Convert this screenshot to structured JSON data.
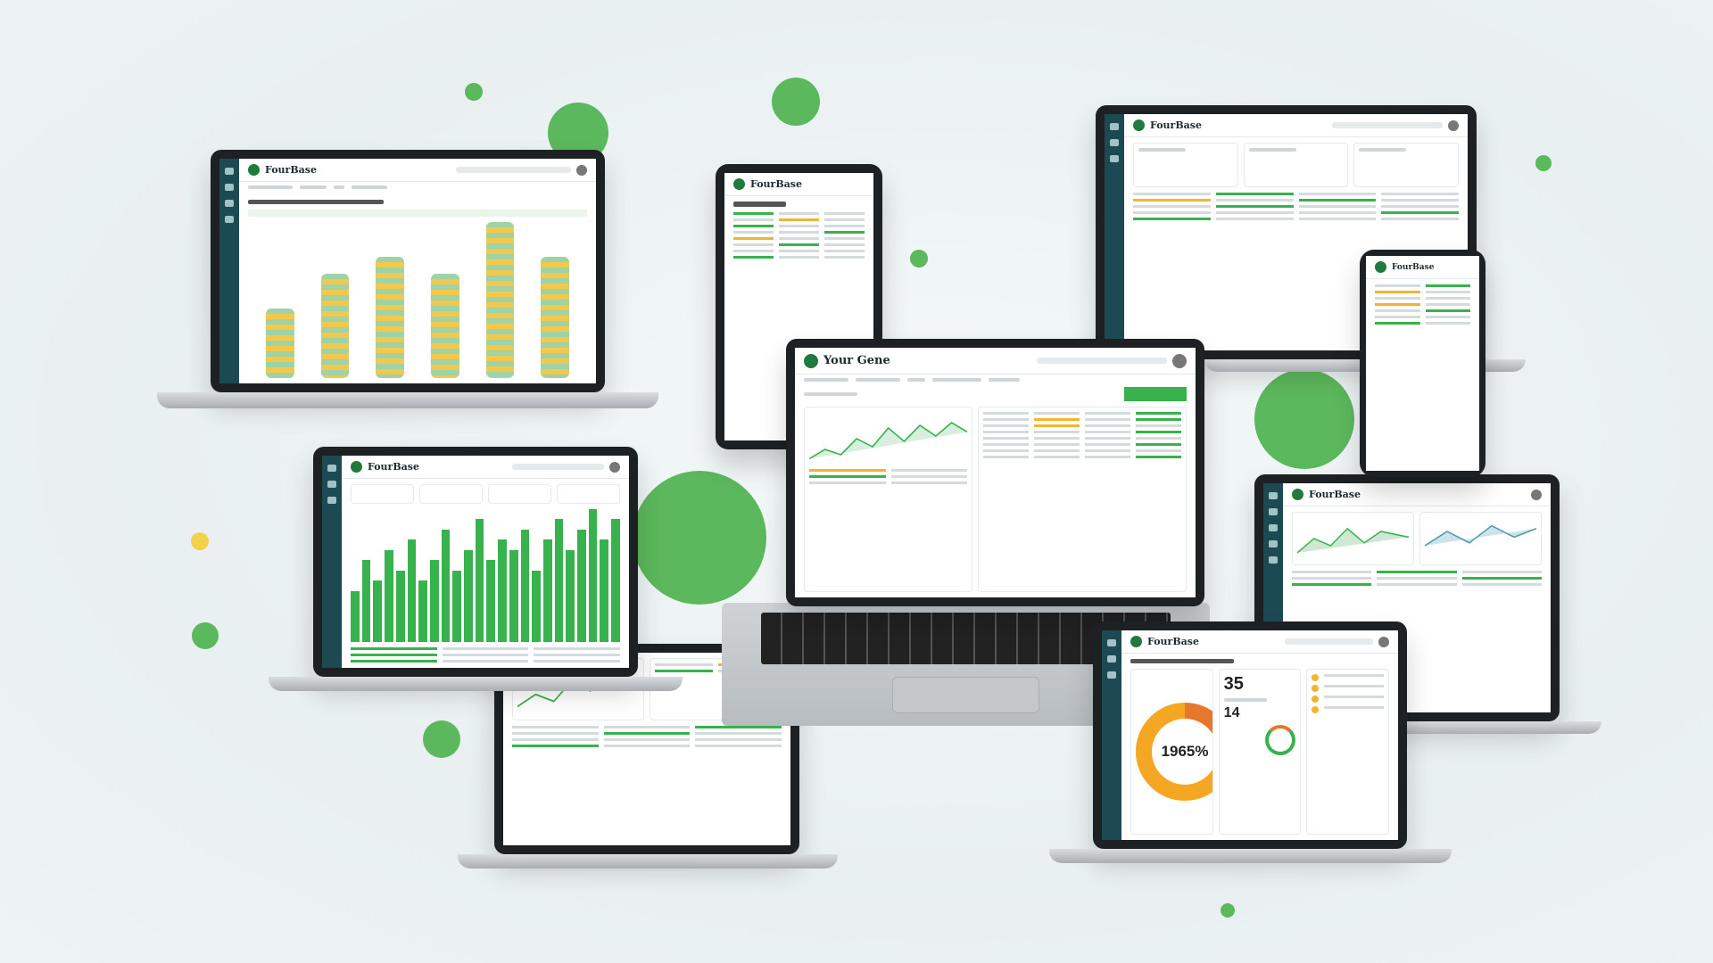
{
  "brand": {
    "logo_main": "Your Gene",
    "logo_alt": "FourBase"
  },
  "colors": {
    "accent": "#37b24d",
    "sidebar": "#1d4a52",
    "warning": "#f5a623",
    "orange": "#e8772e",
    "dot": "#5cb85c"
  },
  "center_laptop": {
    "cta_icon": "green-action-button"
  },
  "donut_panel": {
    "percent_label": "1965%",
    "percent_fill": 0.25,
    "stat_a": "35",
    "stat_b": "14"
  },
  "chart_data": [
    {
      "type": "bar",
      "values": [
        5,
        8,
        6,
        9,
        7,
        10,
        6,
        8,
        11,
        7,
        9,
        12,
        8,
        10,
        9,
        11,
        7,
        10,
        12,
        9,
        11,
        13,
        10,
        12
      ]
    },
    {
      "type": "bar",
      "values": [
        4,
        6,
        7,
        6,
        9,
        7
      ]
    }
  ]
}
